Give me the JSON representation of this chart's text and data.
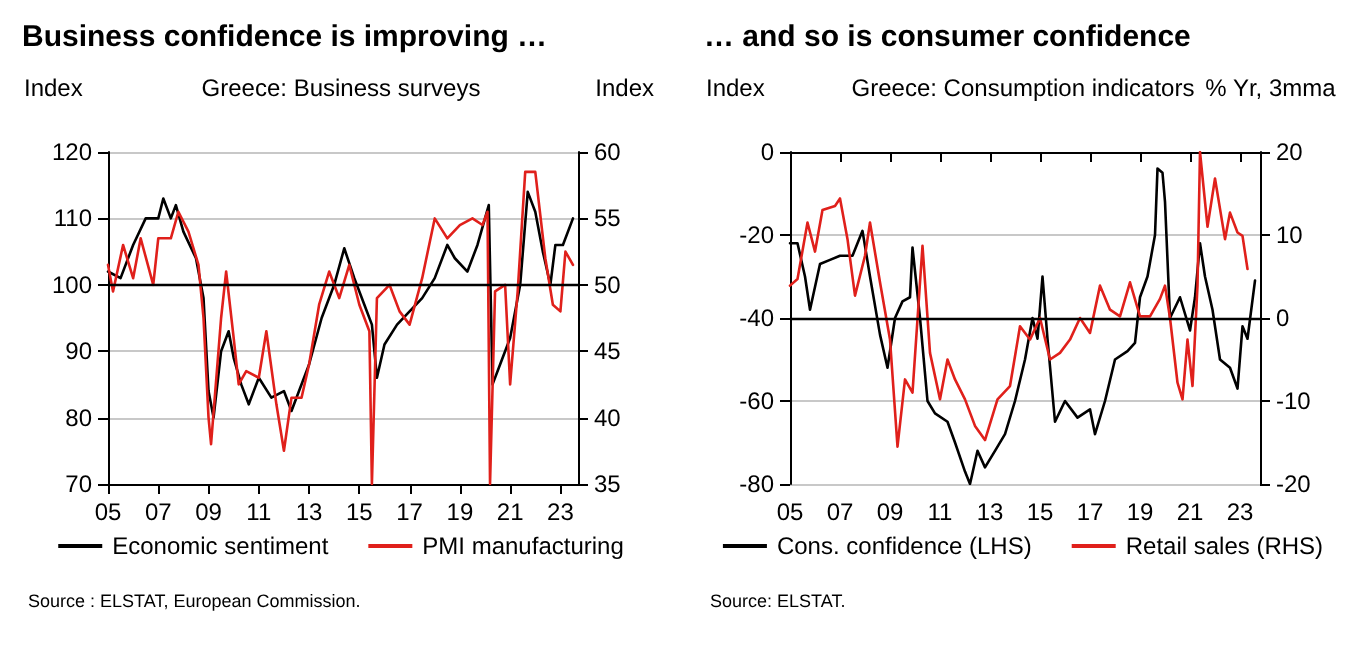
{
  "chart_data": [
    {
      "type": "line",
      "title": "Business confidence is improving …",
      "subtitle": "Greece: Business surveys",
      "ylabel": "Index",
      "y2label": "Index",
      "annotations": [
        "Source : ELSTAT, European Commission."
      ],
      "xlim": [
        2005,
        2023.7
      ],
      "xticks": [
        {
          "value": 2005,
          "label": "05"
        },
        {
          "value": 2007,
          "label": "07"
        },
        {
          "value": 2009,
          "label": "09"
        },
        {
          "value": 2011,
          "label": "11"
        },
        {
          "value": 2013,
          "label": "13"
        },
        {
          "value": 2015,
          "label": "15"
        },
        {
          "value": 2017,
          "label": "17"
        },
        {
          "value": 2019,
          "label": "19"
        },
        {
          "value": 2021,
          "label": "21"
        },
        {
          "value": 2023,
          "label": "23"
        }
      ],
      "ylim": [
        70,
        120
      ],
      "yticks": [
        70,
        80,
        90,
        100,
        110,
        120
      ],
      "y2lim": [
        35,
        60
      ],
      "y2ticks": [
        35,
        40,
        45,
        50,
        55,
        60
      ],
      "grid": "y",
      "legend": "bottom",
      "ref_lines": [
        {
          "axis": "y",
          "value": 100,
          "color": "#000000"
        }
      ],
      "series": [
        {
          "name": "Economic sentiment",
          "color": "#000000",
          "x": [
            2005,
            2005.5,
            2006,
            2006.5,
            2007,
            2007.2,
            2007.5,
            2007.7,
            2008,
            2008.5,
            2008.8,
            2009,
            2009.2,
            2009.5,
            2009.8,
            2010,
            2010.3,
            2010.6,
            2011,
            2011.5,
            2012,
            2012.3,
            2012.6,
            2013,
            2013.5,
            2014,
            2014.4,
            2014.8,
            2015.2,
            2015.5,
            2015.7,
            2016,
            2016.5,
            2017,
            2017.5,
            2018,
            2018.5,
            2018.8,
            2019.3,
            2019.7,
            2020,
            2020.15,
            2020.3,
            2020.6,
            2021,
            2021.4,
            2021.7,
            2022,
            2022.3,
            2022.6,
            2022.8,
            2023.1,
            2023.5
          ],
          "values": [
            102,
            101,
            106,
            110,
            110,
            113,
            110,
            112,
            108,
            104,
            98,
            84,
            80,
            90,
            93,
            89,
            85,
            82,
            86,
            83,
            84,
            81,
            84,
            88,
            95,
            100,
            105.5,
            101,
            97,
            94,
            86,
            91,
            94,
            96,
            98,
            101,
            106,
            104,
            102,
            106,
            110,
            112,
            85,
            88,
            92,
            100,
            114,
            111,
            105,
            100,
            106,
            106,
            110
          ]
        },
        {
          "name": "PMI manufacturing",
          "color": "#e0201b",
          "axis": "y2",
          "x": [
            2005,
            2005.2,
            2005.6,
            2006,
            2006.3,
            2006.8,
            2007,
            2007.5,
            2007.8,
            2008.2,
            2008.6,
            2008.8,
            2009,
            2009.1,
            2009.5,
            2009.7,
            2010,
            2010.2,
            2010.5,
            2011,
            2011.3,
            2011.7,
            2012,
            2012.3,
            2012.7,
            2013,
            2013.4,
            2013.8,
            2014.2,
            2014.6,
            2015,
            2015.4,
            2015.5,
            2015.7,
            2016.2,
            2016.6,
            2017,
            2017.5,
            2018,
            2018.5,
            2019,
            2019.5,
            2019.9,
            2020.1,
            2020.2,
            2020.4,
            2020.8,
            2021,
            2021.3,
            2021.6,
            2022,
            2022.4,
            2022.7,
            2023,
            2023.2,
            2023.5
          ],
          "values": [
            51.5,
            49.5,
            53,
            50.5,
            53.5,
            50,
            53.5,
            53.5,
            55.5,
            54,
            51.5,
            47.5,
            40,
            38,
            47.5,
            51,
            46,
            42.5,
            43.5,
            43,
            46.5,
            41,
            37.5,
            41.5,
            41.5,
            44,
            48.5,
            51,
            49,
            51.5,
            48.5,
            46.5,
            35,
            49,
            50,
            48,
            47,
            50.5,
            55,
            53.5,
            54.5,
            55,
            54.5,
            55.5,
            35,
            49.5,
            50,
            42.5,
            49.5,
            58.5,
            58.5,
            52,
            48.5,
            48,
            52.5,
            51.5
          ]
        }
      ]
    },
    {
      "type": "line",
      "title": "… and so is consumer confidence",
      "subtitle": "Greece: Consumption indicators",
      "ylabel": "Index",
      "y2label": "% Yr, 3mma",
      "annotations": [
        "Source: ELSTAT."
      ],
      "xlim": [
        2005,
        2023.8
      ],
      "xticks": [
        {
          "value": 2005,
          "label": "05"
        },
        {
          "value": 2007,
          "label": "07"
        },
        {
          "value": 2009,
          "label": "09"
        },
        {
          "value": 2011,
          "label": "11"
        },
        {
          "value": 2013,
          "label": "13"
        },
        {
          "value": 2015,
          "label": "15"
        },
        {
          "value": 2017,
          "label": "17"
        },
        {
          "value": 2019,
          "label": "19"
        },
        {
          "value": 2021,
          "label": "21"
        },
        {
          "value": 2023,
          "label": "23"
        }
      ],
      "ylim": [
        -80,
        0
      ],
      "yticks": [
        -80,
        -60,
        -40,
        -20,
        0
      ],
      "y2lim": [
        -20,
        20
      ],
      "y2ticks": [
        -20,
        -10,
        0,
        10,
        20
      ],
      "grid": "y",
      "legend": "bottom",
      "ref_lines": [
        {
          "axis": "y",
          "value": -40,
          "color": "#000000"
        }
      ],
      "series": [
        {
          "name": "Cons. confidence (LHS)",
          "color": "#000000",
          "x": [
            2005,
            2005.3,
            2005.6,
            2005.8,
            2006.2,
            2006.6,
            2007,
            2007.5,
            2007.9,
            2008.2,
            2008.6,
            2008.9,
            2009.2,
            2009.5,
            2009.8,
            2009.9,
            2010.2,
            2010.5,
            2010.8,
            2011.3,
            2011.6,
            2012,
            2012.2,
            2012.5,
            2012.8,
            2013.2,
            2013.6,
            2014,
            2014.4,
            2014.7,
            2014.9,
            2015.1,
            2015.3,
            2015.6,
            2016,
            2016.5,
            2017,
            2017.2,
            2017.6,
            2018,
            2018.5,
            2018.8,
            2019,
            2019.3,
            2019.6,
            2019.7,
            2019.9,
            2020,
            2020.2,
            2020.6,
            2021,
            2021.2,
            2021.4,
            2021.6,
            2021.9,
            2022.2,
            2022.6,
            2022.9,
            2023.1,
            2023.3,
            2023.6
          ],
          "values": [
            -22,
            -22,
            -30,
            -38,
            -27,
            -26,
            -25,
            -25,
            -19,
            -30,
            -44,
            -52,
            -40,
            -36,
            -35,
            -23,
            -40,
            -60,
            -63,
            -65,
            -70,
            -77,
            -80,
            -72,
            -76,
            -72,
            -68,
            -60,
            -50,
            -40,
            -45,
            -30,
            -45,
            -65,
            -60,
            -64,
            -62,
            -68,
            -60,
            -50,
            -48,
            -46,
            -35,
            -30,
            -20,
            -4,
            -5,
            -12,
            -40,
            -35,
            -43,
            -35,
            -22,
            -30,
            -38,
            -50,
            -52,
            -57,
            -42,
            -45,
            -31
          ]
        },
        {
          "name": "Retail sales (RHS)",
          "color": "#e0201b",
          "axis": "y2",
          "x": [
            2005,
            2005.3,
            2005.7,
            2006,
            2006.3,
            2006.8,
            2007,
            2007.3,
            2007.6,
            2008,
            2008.2,
            2008.6,
            2009,
            2009.3,
            2009.6,
            2009.9,
            2010.3,
            2010.6,
            2011,
            2011.3,
            2011.6,
            2012,
            2012.4,
            2012.8,
            2013.3,
            2013.8,
            2014.2,
            2014.6,
            2015,
            2015.4,
            2015.8,
            2016.2,
            2016.6,
            2017,
            2017.4,
            2017.8,
            2018.2,
            2018.6,
            2019,
            2019.4,
            2019.8,
            2020,
            2020.2,
            2020.5,
            2020.7,
            2020.9,
            2021.1,
            2021.3,
            2021.4,
            2021.7,
            2022,
            2022.4,
            2022.6,
            2022.9,
            2023.1,
            2023.3
          ],
          "values": [
            3.9,
            4.7,
            11.5,
            8,
            13,
            13.5,
            14.4,
            9.5,
            2.7,
            7.5,
            11.5,
            4.3,
            -2.6,
            -15.5,
            -7.4,
            -9,
            8.7,
            -4.2,
            -9.8,
            -5,
            -7.4,
            -9.8,
            -13,
            -14.7,
            -9.8,
            -8.2,
            -1,
            -2.6,
            0,
            -5,
            -4.2,
            -2.6,
            0,
            -1.8,
            3.9,
            1,
            0.2,
            4.3,
            0.2,
            0.2,
            2.3,
            3.9,
            0,
            -7.8,
            -9.8,
            -2.6,
            -8.2,
            3.9,
            20,
            11,
            16.8,
            9.5,
            12.7,
            10.3,
            9.9,
            5.9
          ]
        }
      ]
    }
  ]
}
